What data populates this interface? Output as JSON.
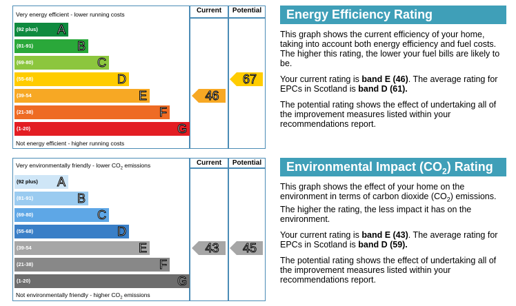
{
  "energy": {
    "top_caption": "Very energy efficient - lower running costs",
    "bottom_caption": "Not energy efficient - higher running costs",
    "col_current": "Current",
    "col_potential": "Potential",
    "bands": [
      {
        "range": "(92 plus)",
        "letter": "A",
        "color": "#0f8a3f"
      },
      {
        "range": "(81-91)",
        "letter": "B",
        "color": "#2aa83a"
      },
      {
        "range": "(69-80)",
        "letter": "C",
        "color": "#8cc63e"
      },
      {
        "range": "(55-68)",
        "letter": "D",
        "color": "#ffcc00"
      },
      {
        "range": "(39-54",
        "letter": "E",
        "color": "#f7a824"
      },
      {
        "range": "(21-38)",
        "letter": "F",
        "color": "#ee6b24"
      },
      {
        "range": "(1-20)",
        "letter": "G",
        "color": "#e31d23"
      }
    ],
    "current": {
      "value": "46",
      "band": "E",
      "color": "#f7a824"
    },
    "potential": {
      "value": "67",
      "band": "D",
      "color": "#ffcc00"
    }
  },
  "environment": {
    "top_caption_pre": "Very environmentally friendly - lower CO",
    "top_caption_sub": "2",
    "top_caption_post": " emissions",
    "bottom_caption_pre": "Not environmentally friendly - higher CO",
    "bottom_caption_sub": "2",
    "bottom_caption_post": " emissions",
    "col_current": "Current",
    "col_potential": "Potential",
    "bands": [
      {
        "range": "(92 plus)",
        "letter": "A",
        "color": "#cfe6f7",
        "light": true
      },
      {
        "range": "(81-91)",
        "letter": "B",
        "color": "#9acbf0",
        "light": false
      },
      {
        "range": "(69-80)",
        "letter": "C",
        "color": "#5ea7e6",
        "light": false
      },
      {
        "range": "(55-68)",
        "letter": "D",
        "color": "#3a7fc7",
        "light": false
      },
      {
        "range": "(39-54",
        "letter": "E",
        "color": "#a6a6a6",
        "light": false
      },
      {
        "range": "(21-38)",
        "letter": "F",
        "color": "#888888",
        "light": false
      },
      {
        "range": "(1-20)",
        "letter": "G",
        "color": "#6d6d6d",
        "light": false
      }
    ],
    "current": {
      "value": "43",
      "band": "E",
      "color": "#a6a6a6"
    },
    "potential": {
      "value": "45",
      "band": "E",
      "color": "#a6a6a6"
    }
  },
  "energy_panel": {
    "title": "Energy Efficiency Rating",
    "p1": "This graph shows the current efficiency of your home, taking into account both energy efficiency and fuel costs. The higher this rating, the lower your fuel bills are likely to be.",
    "p2_pre": "Your current rating is ",
    "p2_bold1": "band E (46)",
    "p2_mid": ". The average rating for EPCs in Scotland is ",
    "p2_bold2": "band D (61).",
    "p3": "The potential rating shows the effect of undertaking all of the improvement measures listed within your recommendations report."
  },
  "env_panel": {
    "title_pre": "Environmental Impact (CO",
    "title_sub": "2",
    "title_post": ") Rating",
    "p1_pre": "This graph shows the effect of your home on the environment in terms of carbon dioxide (CO",
    "p1_sub": "2",
    "p1_post": ") emissions. The higher the rating, the less impact it has on the environment.",
    "p2_pre": "Your current rating is ",
    "p2_bold1": "band E (43)",
    "p2_mid": ". The average rating for EPCs in Scotland is ",
    "p2_bold2": "band D (59).",
    "p3": "The potential rating shows the effect of undertaking all of the improvement measures listed within your recommendations report."
  }
}
